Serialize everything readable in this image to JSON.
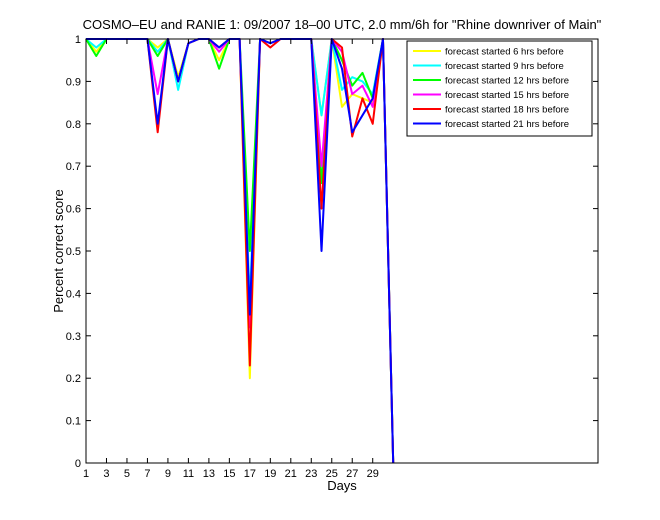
{
  "chart_data": {
    "type": "line",
    "title": "COSMO–EU and RANIE 1: 09/2007 18–00 UTC, 2.0 mm/6h for \"Rhine downriver of Main\"",
    "xlabel": "Days",
    "ylabel": "Percent correct score",
    "xlim": [
      1,
      51
    ],
    "ylim": [
      0,
      1
    ],
    "xticks": [
      1,
      3,
      5,
      7,
      9,
      11,
      13,
      15,
      17,
      19,
      21,
      23,
      25,
      27,
      29
    ],
    "xtick_labels": [
      "1",
      "3",
      "5",
      "7",
      "9",
      "11",
      "13",
      "15",
      "17",
      "19",
      "21",
      "23",
      "25",
      "27",
      "29"
    ],
    "yticks": [
      0,
      0.1,
      0.2,
      0.3,
      0.4,
      0.5,
      0.6,
      0.7,
      0.8,
      0.9,
      1
    ],
    "ytick_labels": [
      "0",
      "0.1",
      "0.2",
      "0.3",
      "0.4",
      "0.5",
      "0.6",
      "0.7",
      "0.8",
      "0.9",
      "1"
    ],
    "grid": false,
    "legend_position": "top-right",
    "x": [
      1,
      2,
      3,
      4,
      5,
      6,
      7,
      8,
      9,
      10,
      11,
      12,
      13,
      14,
      15,
      16,
      17,
      18,
      19,
      20,
      21,
      22,
      23,
      24,
      25,
      26,
      27,
      28,
      29,
      30,
      31
    ],
    "series": [
      {
        "name": "forecast started 6 hrs before",
        "color": "#ffff00",
        "values": [
          1,
          0.97,
          1,
          1,
          1,
          1,
          1,
          0.98,
          1,
          0.91,
          0.99,
          1,
          1,
          0.95,
          1,
          1,
          0.2,
          1,
          0.99,
          1,
          1,
          1,
          1,
          0.82,
          1,
          0.84,
          0.87,
          0.86,
          0.85,
          1,
          0
        ]
      },
      {
        "name": "forecast started 9 hrs before",
        "color": "#00ffff",
        "values": [
          1,
          0.98,
          1,
          1,
          1,
          1,
          1,
          0.97,
          1,
          0.88,
          0.99,
          1,
          1,
          0.98,
          1,
          1,
          0.38,
          1,
          0.99,
          1,
          1,
          1,
          1,
          0.82,
          1,
          0.88,
          0.91,
          0.9,
          0.87,
          1,
          0
        ]
      },
      {
        "name": "forecast started 12 hrs before",
        "color": "#00ff00",
        "values": [
          1,
          0.96,
          1,
          1,
          1,
          1,
          1,
          0.96,
          1,
          0.9,
          0.99,
          1,
          1,
          0.93,
          1,
          1,
          0.5,
          1,
          0.99,
          1,
          1,
          1,
          1,
          0.66,
          1,
          0.95,
          0.89,
          0.92,
          0.86,
          1,
          0
        ]
      },
      {
        "name": "forecast started 15 hrs before",
        "color": "#ff00ff",
        "values": [
          1,
          1,
          1,
          1,
          1,
          1,
          1,
          0.87,
          1,
          0.9,
          0.99,
          1,
          1,
          0.97,
          1,
          1,
          0.32,
          1,
          0.99,
          1,
          1,
          1,
          1,
          0.7,
          1,
          0.97,
          0.87,
          0.89,
          0.84,
          1,
          0
        ]
      },
      {
        "name": "forecast started 18 hrs before",
        "color": "#ff0000",
        "values": [
          1,
          1,
          1,
          1,
          1,
          1,
          1,
          0.78,
          1,
          0.9,
          0.99,
          1,
          1,
          0.98,
          1,
          1,
          0.23,
          1,
          0.98,
          1,
          1,
          1,
          1,
          0.6,
          1,
          0.98,
          0.77,
          0.86,
          0.8,
          1,
          0
        ]
      },
      {
        "name": "forecast started 21 hrs before",
        "color": "#0000ff",
        "values": [
          1,
          1,
          1,
          1,
          1,
          1,
          1,
          0.8,
          1,
          0.9,
          0.99,
          1,
          1,
          0.98,
          1,
          1,
          0.35,
          1,
          0.99,
          1,
          1,
          1,
          1,
          0.5,
          1,
          0.93,
          0.78,
          0.82,
          0.86,
          1,
          0
        ]
      }
    ]
  }
}
